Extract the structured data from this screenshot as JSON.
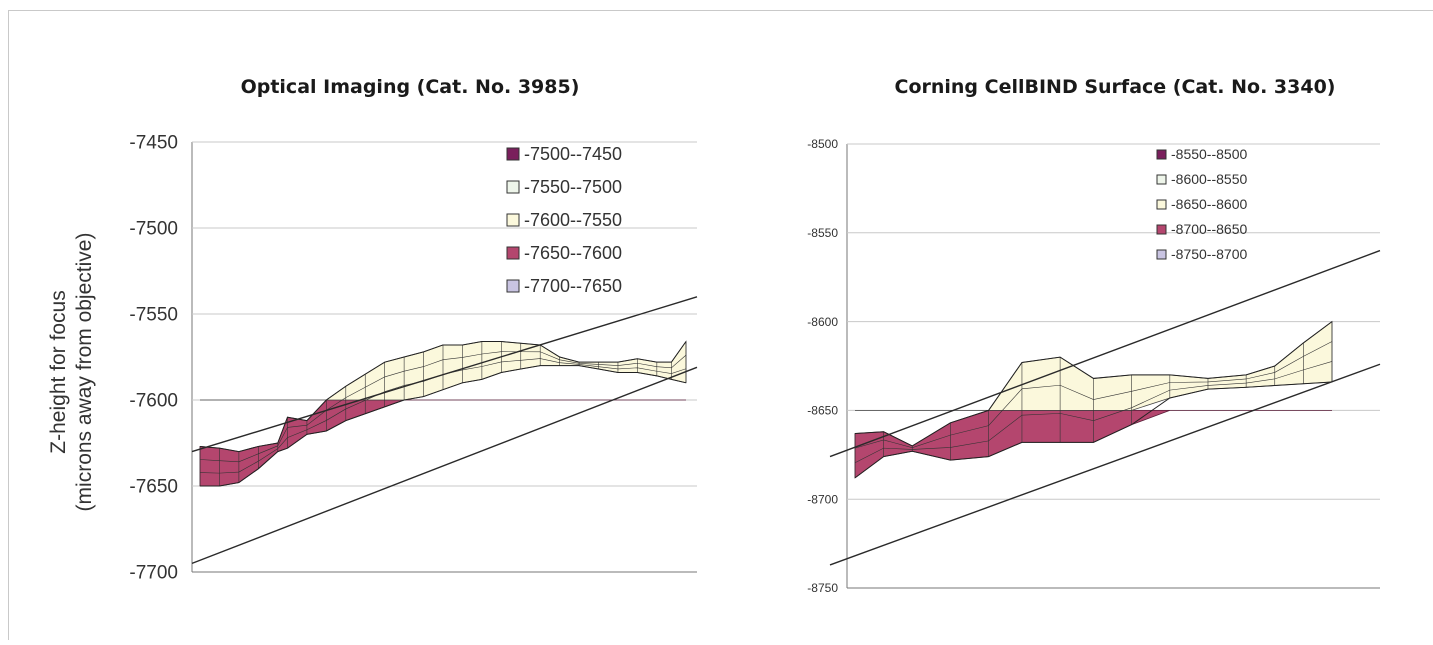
{
  "y_axis_title": {
    "line1": "Z-height for focus",
    "line2": "(microns away from objective)"
  },
  "chart_data": [
    {
      "type": "surface",
      "title": "Optical Imaging (Cat. No. 3985)",
      "ylim": [
        -7700,
        -7450
      ],
      "yticks": [
        -7450,
        -7500,
        -7550,
        -7600,
        -7650,
        -7700
      ],
      "grid": true,
      "legend_position": "top-right",
      "legend": [
        {
          "label": "-7500--7450",
          "color": "#7a1f5c"
        },
        {
          "label": "-7550--7500",
          "color": "#eef5ea"
        },
        {
          "label": "-7600--7550",
          "color": "#fbf8dc"
        },
        {
          "label": "-7650--7600",
          "color": "#b4466e"
        },
        {
          "label": "-7700--7650",
          "color": "#c9c4e2"
        }
      ],
      "band_lines": [
        {
          "y_start": -7630,
          "y_end": -7540
        },
        {
          "y_start": -7695,
          "y_end": -7581
        }
      ],
      "profile": {
        "x": [
          0,
          0.04,
          0.08,
          0.12,
          0.16,
          0.18,
          0.22,
          0.26,
          0.3,
          0.34,
          0.38,
          0.42,
          0.46,
          0.5,
          0.54,
          0.58,
          0.62,
          0.66,
          0.7,
          0.74,
          0.78,
          0.82,
          0.86,
          0.9,
          0.94,
          0.97,
          1.0
        ],
        "upper": [
          -7627,
          -7628,
          -7630,
          -7627,
          -7625,
          -7610,
          -7612,
          -7600,
          -7592,
          -7585,
          -7578,
          -7575,
          -7572,
          -7568,
          -7568,
          -7566,
          -7566,
          -7567,
          -7568,
          -7575,
          -7578,
          -7578,
          -7578,
          -7576,
          -7578,
          -7578,
          -7566
        ],
        "lower": [
          -7650,
          -7650,
          -7648,
          -7640,
          -7630,
          -7628,
          -7620,
          -7618,
          -7612,
          -7608,
          -7604,
          -7600,
          -7598,
          -7594,
          -7590,
          -7588,
          -7584,
          -7582,
          -7580,
          -7580,
          -7580,
          -7582,
          -7584,
          -7584,
          -7586,
          -7588,
          -7590
        ],
        "threshold": -7600
      }
    },
    {
      "type": "surface",
      "title": "Corning CellBIND Surface (Cat. No. 3340)",
      "ylim": [
        -8750,
        -8500
      ],
      "yticks": [
        -8500,
        -8550,
        -8600,
        -8650,
        -8700,
        -8750
      ],
      "grid": true,
      "legend_position": "top-center",
      "legend": [
        {
          "label": "-8550--8500",
          "color": "#7a1f5c"
        },
        {
          "label": "-8600--8550",
          "color": "#eef5ea"
        },
        {
          "label": "-8650--8600",
          "color": "#fbf8dc"
        },
        {
          "label": "-8700--8650",
          "color": "#b4466e"
        },
        {
          "label": "-8750--8700",
          "color": "#c9c4e2"
        }
      ],
      "band_lines": [
        {
          "y_start": -8676,
          "y_end": -8560
        },
        {
          "y_start": -8737,
          "y_end": -8624
        }
      ],
      "profile": {
        "x": [
          0,
          0.06,
          0.12,
          0.2,
          0.28,
          0.35,
          0.43,
          0.5,
          0.58,
          0.66,
          0.74,
          0.82,
          0.88,
          0.94,
          1.0
        ],
        "upper": [
          -8663,
          -8662,
          -8670,
          -8657,
          -8650,
          -8623,
          -8620,
          -8632,
          -8630,
          -8630,
          -8632,
          -8630,
          -8625,
          -8612,
          -8600
        ],
        "lower": [
          -8688,
          -8676,
          -8673,
          -8678,
          -8676,
          -8668,
          -8668,
          -8668,
          -8658,
          -8643,
          -8638,
          -8637,
          -8636,
          -8635,
          -8634
        ],
        "threshold": -8650
      }
    }
  ]
}
